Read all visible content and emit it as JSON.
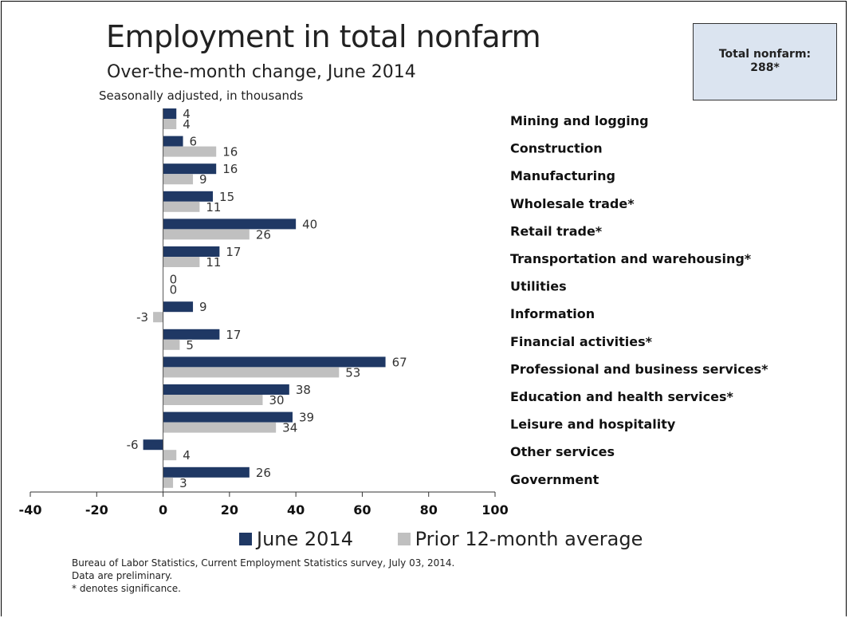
{
  "title": "Employment in total nonfarm",
  "subtitle": "Over-the-month change, June 2014",
  "subtitle2": "Seasonally adjusted, in thousands",
  "total_box": {
    "line1": "Total nonfarm:",
    "line2": "288*"
  },
  "legend": {
    "series1": "June 2014",
    "series2": "Prior 12-month average"
  },
  "source": [
    "Bureau of Labor Statistics, Current Employment Statistics survey, July 03, 2014.",
    "Data are preliminary.",
    "* denotes significance."
  ],
  "colors": {
    "june": "#1f3864",
    "prior": "#c0c0c0",
    "total_box_bg": "#dbe4f0"
  },
  "chart_data": {
    "type": "bar",
    "orientation": "horizontal",
    "categories": [
      "Mining and logging",
      "Construction",
      "Manufacturing",
      "Wholesale trade*",
      "Retail trade*",
      "Transportation and warehousing*",
      "Utilities",
      "Information",
      "Financial activities*",
      "Professional and business services*",
      "Education and health services*",
      "Leisure and hospitality",
      "Other services",
      "Government"
    ],
    "series": [
      {
        "name": "June 2014",
        "values": [
          4,
          6,
          16,
          15,
          40,
          17,
          0,
          9,
          17,
          67,
          38,
          39,
          -6,
          26
        ]
      },
      {
        "name": "Prior 12-month average",
        "values": [
          4,
          16,
          9,
          11,
          26,
          11,
          0,
          -3,
          5,
          53,
          30,
          34,
          4,
          3
        ]
      }
    ],
    "xlim": [
      -40,
      100
    ],
    "xticks": [
      -40,
      -20,
      0,
      20,
      40,
      60,
      80,
      100
    ]
  }
}
